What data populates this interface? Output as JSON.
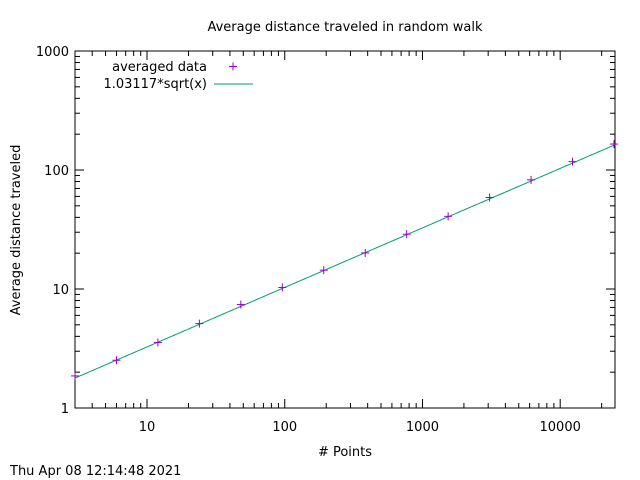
{
  "chart_data": {
    "type": "scatter",
    "title": "Average distance traveled in random walk",
    "xlabel": "# Points",
    "ylabel": "Average distance traveled",
    "xscale": "log",
    "yscale": "log",
    "xlim": [
      3,
      25000
    ],
    "ylim": [
      1,
      1000
    ],
    "xticks": [
      10,
      100,
      1000,
      10000
    ],
    "xtick_labels": [
      "10",
      "100",
      "1000",
      "10000"
    ],
    "yticks": [
      1,
      10,
      100,
      1000
    ],
    "ytick_labels": [
      "1",
      "10",
      "100",
      "1000"
    ],
    "grid": false,
    "legend_position": "top-left",
    "series": [
      {
        "name": "averaged data",
        "style": "points",
        "marker": "+",
        "color": "#9400d3",
        "x": [
          3,
          6,
          12,
          24,
          48,
          96,
          192,
          384,
          768,
          1536,
          3072,
          6144,
          12288,
          24576
        ],
        "y": [
          1.86,
          2.52,
          3.55,
          5.12,
          7.4,
          10.3,
          14.4,
          20.1,
          28.9,
          40.8,
          58.7,
          82.6,
          117.5,
          165.2
        ]
      },
      {
        "name": "1.03117*sqrt(x)",
        "style": "line",
        "color": "#009e73",
        "function": {
          "coefficient": 1.03117,
          "exponent": 0.5
        }
      }
    ]
  },
  "timestamp": "Thu Apr 08 12:14:48 2021"
}
